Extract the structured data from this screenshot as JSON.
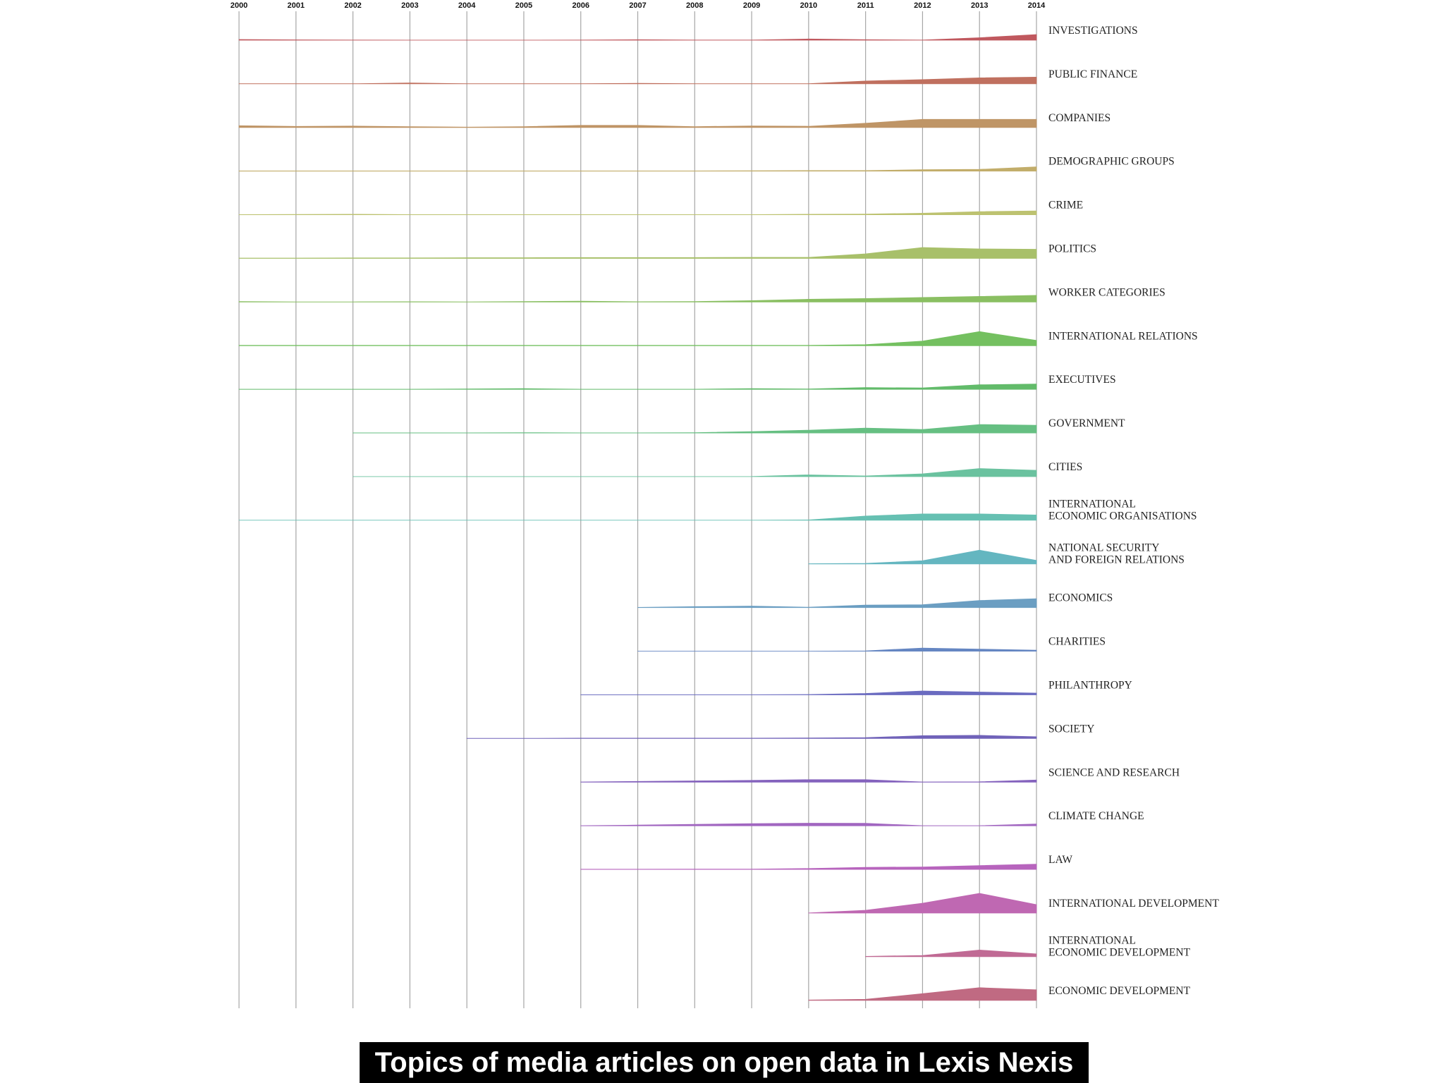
{
  "chart_data": {
    "type": "area",
    "title": "Topics of media articles on open data in Lexis Nexis",
    "x": [
      2000,
      2001,
      2002,
      2003,
      2004,
      2005,
      2006,
      2007,
      2008,
      2009,
      2010,
      2011,
      2012,
      2013,
      2014
    ],
    "x_labels": [
      "2000",
      "2001",
      "2002",
      "2003",
      "2004",
      "2005",
      "2006",
      "2007",
      "2008",
      "2009",
      "2010",
      "2011",
      "2012",
      "2013",
      "2014"
    ],
    "xlabel": "",
    "ylabel": "",
    "grid": true,
    "series": [
      {
        "name": "INVESTIGATIONS",
        "label_lines": [
          "INVESTIGATIONS"
        ],
        "color": "#c0585e",
        "start": 2000,
        "values": [
          2,
          1,
          0.5,
          0.3,
          0.3,
          0.3,
          0.5,
          1.5,
          0.5,
          0.5,
          3.5,
          1.5,
          0.5,
          7,
          16
        ]
      },
      {
        "name": "PUBLIC FINANCE",
        "label_lines": [
          "PUBLIC FINANCE"
        ],
        "color": "#c0705f",
        "start": 2000,
        "values": [
          0.5,
          0.5,
          0.5,
          2.5,
          0.5,
          0.5,
          0.5,
          1.5,
          0.5,
          0.5,
          0.5,
          8,
          12,
          17,
          19
        ]
      },
      {
        "name": "COMPANIES",
        "label_lines": [
          "COMPANIES"
        ],
        "color": "#bf9566",
        "start": 2000,
        "values": [
          5,
          3,
          4,
          2.5,
          1,
          2.5,
          6,
          6,
          2.5,
          4.5,
          3.5,
          12,
          23,
          23,
          23
        ]
      },
      {
        "name": "DEMOGRAPHIC GROUPS",
        "label_lines": [
          "DEMOGRAPHIC GROUPS"
        ],
        "color": "#c2ad6a",
        "start": 2000,
        "values": [
          0.5,
          0.5,
          0.5,
          0.5,
          0.5,
          0.5,
          0.5,
          0.5,
          0.5,
          1,
          1.5,
          1.5,
          4,
          5,
          12
        ]
      },
      {
        "name": "CRIME",
        "label_lines": [
          "CRIME"
        ],
        "color": "#bdc270",
        "start": 2000,
        "values": [
          0.5,
          1,
          1.5,
          0.5,
          0.5,
          0.5,
          0.5,
          0.5,
          0.5,
          0.5,
          1.5,
          2,
          4.5,
          9,
          11
        ]
      },
      {
        "name": "POLITICS",
        "label_lines": [
          "POLITICS"
        ],
        "color": "#a8c06a",
        "start": 2000,
        "values": [
          1,
          1,
          1.5,
          1.5,
          2,
          2,
          2.5,
          2.5,
          2.5,
          3,
          3,
          13,
          31,
          27,
          26
        ]
      },
      {
        "name": "WORKER CATEGORIES",
        "label_lines": [
          "WORKER CATEGORIES"
        ],
        "color": "#8abf62",
        "start": 2000,
        "values": [
          1.5,
          0.5,
          0.5,
          1,
          0.5,
          1.5,
          2.5,
          1,
          1.5,
          4,
          8,
          10,
          13,
          16,
          19
        ]
      },
      {
        "name": "INTERNATIONAL RELATIONS",
        "label_lines": [
          "INTERNATIONAL RELATIONS"
        ],
        "color": "#74c060",
        "start": 2000,
        "values": [
          1,
          1,
          1,
          1,
          1,
          1,
          1,
          1,
          1,
          1,
          1,
          3,
          13,
          40,
          15
        ]
      },
      {
        "name": "EXECUTIVES",
        "label_lines": [
          "EXECUTIVES"
        ],
        "color": "#62bb6a",
        "start": 2000,
        "values": [
          0.5,
          0.5,
          0.5,
          0.5,
          1,
          2,
          0.5,
          0.5,
          0.5,
          2,
          1,
          5,
          4,
          13,
          15
        ]
      },
      {
        "name": "GOVERNMENT",
        "label_lines": [
          "GOVERNMENT"
        ],
        "color": "#66bf82",
        "start": 2002,
        "values": [
          null,
          null,
          0.5,
          0.5,
          0.5,
          1,
          0.5,
          0.5,
          1,
          4,
          8,
          14,
          10,
          24,
          22
        ]
      },
      {
        "name": "CITIES",
        "label_lines": [
          "CITIES"
        ],
        "color": "#6ac29f",
        "start": 2002,
        "values": [
          null,
          null,
          0.3,
          0.3,
          0.3,
          0.3,
          0.3,
          0.3,
          0.3,
          0.5,
          5,
          2,
          8,
          23,
          18
        ]
      },
      {
        "name": "INTERNATIONAL ECONOMIC ORGANISATIONS",
        "label_lines": [
          "INTERNATIONAL",
          "ECONOMIC ORGANISATIONS"
        ],
        "color": "#66c0b2",
        "start": 2000,
        "values": [
          0.3,
          0.3,
          0.3,
          0.3,
          0.3,
          0.3,
          0.3,
          0.3,
          0.3,
          0.3,
          1,
          12,
          18,
          18,
          15
        ]
      },
      {
        "name": "NATIONAL SECURITY AND FOREIGN RELATIONS",
        "label_lines": [
          "NATIONAL SECURITY",
          "AND FOREIGN RELATIONS"
        ],
        "color": "#64b6c0",
        "start": 2010,
        "values": [
          null,
          null,
          null,
          null,
          null,
          null,
          null,
          null,
          null,
          null,
          0.5,
          1.5,
          9,
          39,
          10
        ]
      },
      {
        "name": "ECONOMICS",
        "label_lines": [
          "ECONOMICS"
        ],
        "color": "#6b9ec2",
        "start": 2007,
        "values": [
          null,
          null,
          null,
          null,
          null,
          null,
          null,
          0.5,
          2.5,
          4,
          1,
          7,
          8,
          20,
          25
        ]
      },
      {
        "name": "CHARITIES",
        "label_lines": [
          "CHARITIES"
        ],
        "color": "#6586c2",
        "start": 2007,
        "values": [
          null,
          null,
          null,
          null,
          null,
          null,
          null,
          0.3,
          0.3,
          0.3,
          0.3,
          1,
          9,
          6,
          3
        ]
      },
      {
        "name": "PHILANTHROPY",
        "label_lines": [
          "PHILANTHROPY"
        ],
        "color": "#6a6bc0",
        "start": 2006,
        "values": [
          null,
          null,
          null,
          null,
          null,
          null,
          0.5,
          0.5,
          0.5,
          0.5,
          1,
          4,
          11,
          8,
          5
        ]
      },
      {
        "name": "SOCIETY",
        "label_lines": [
          "SOCIETY"
        ],
        "color": "#7062b9",
        "start": 2004,
        "values": [
          null,
          null,
          null,
          null,
          0.5,
          0.5,
          1,
          1,
          1,
          1,
          1.5,
          2.5,
          8,
          9,
          5
        ]
      },
      {
        "name": "SCIENCE AND RESEARCH",
        "label_lines": [
          "SCIENCE AND RESEARCH"
        ],
        "color": "#8462bd",
        "start": 2006,
        "values": [
          null,
          null,
          null,
          null,
          null,
          null,
          0.5,
          2,
          3.5,
          5,
          7,
          7,
          0.5,
          1,
          6
        ]
      },
      {
        "name": "CLIMATE CHANGE",
        "label_lines": [
          "CLIMATE CHANGE"
        ],
        "color": "#a166c0",
        "start": 2006,
        "values": [
          null,
          null,
          null,
          null,
          null,
          null,
          0.5,
          2,
          4,
          6,
          7.5,
          7,
          0.5,
          0.5,
          5
        ]
      },
      {
        "name": "LAW",
        "label_lines": [
          "LAW"
        ],
        "color": "#b764bd",
        "start": 2006,
        "values": [
          null,
          null,
          null,
          null,
          null,
          null,
          0.5,
          0.5,
          1,
          1,
          2.5,
          6,
          7,
          11,
          15
        ]
      },
      {
        "name": "INTERNATIONAL DEVELOPMENT",
        "label_lines": [
          "INTERNATIONAL DEVELOPMENT"
        ],
        "color": "#bf68b2",
        "start": 2010,
        "values": [
          null,
          null,
          null,
          null,
          null,
          null,
          null,
          null,
          null,
          null,
          0.5,
          8,
          28,
          56,
          24
        ]
      },
      {
        "name": "INTERNATIONAL ECONOMIC DEVELOPMENT",
        "label_lines": [
          "INTERNATIONAL",
          "ECONOMIC DEVELOPMENT"
        ],
        "color": "#c06a94",
        "start": 2011,
        "values": [
          null,
          null,
          null,
          null,
          null,
          null,
          null,
          null,
          null,
          null,
          null,
          1,
          3.5,
          19,
          8
        ]
      },
      {
        "name": "ECONOMIC DEVELOPMENT",
        "label_lines": [
          "ECONOMIC DEVELOPMENT"
        ],
        "color": "#c06a82",
        "start": 2010,
        "values": [
          null,
          null,
          null,
          null,
          null,
          null,
          null,
          null,
          null,
          null,
          1,
          3,
          19,
          36,
          30
        ]
      }
    ]
  }
}
